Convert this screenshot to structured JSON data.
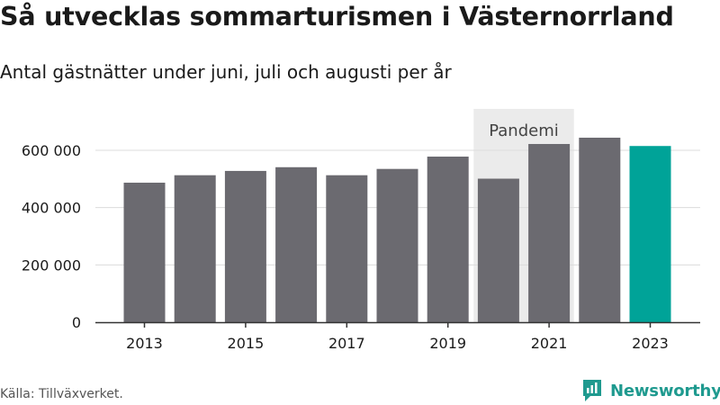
{
  "header": {
    "title": "Så utvecklas sommarturismen i Västernorrland",
    "subtitle": "Antal gästnätter under juni, juli och augusti per år"
  },
  "footer": {
    "source": "Källa: Tillväxverket.",
    "brand": "Newsworthy"
  },
  "colors": {
    "bar": "#6b6a70",
    "highlight": "#00a398",
    "pandemic_band": "#ebebeb",
    "brand": "#1f9a8f"
  },
  "chart_data": {
    "type": "bar",
    "categories": [
      "2013",
      "2014",
      "2015",
      "2016",
      "2017",
      "2018",
      "2019",
      "2020",
      "2021",
      "2022",
      "2023"
    ],
    "values": [
      487000,
      513000,
      528000,
      541000,
      513000,
      535000,
      578000,
      501000,
      622000,
      644000,
      615000
    ],
    "highlight_category": "2023",
    "x_tick_labels": [
      "2013",
      "2015",
      "2017",
      "2019",
      "2021",
      "2023"
    ],
    "y_ticks": [
      0,
      200000,
      400000,
      600000
    ],
    "y_tick_labels": [
      "0",
      "200 000",
      "400 000",
      "600 000"
    ],
    "ylim": [
      0,
      660000
    ],
    "grid": true,
    "annotation": {
      "label": "Pandemi",
      "categories": [
        "2020",
        "2021"
      ]
    }
  }
}
